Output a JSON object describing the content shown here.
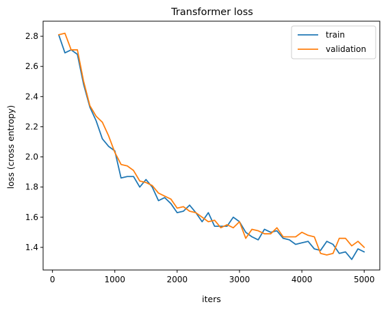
{
  "chart_data": {
    "type": "line",
    "title": "Transformer loss",
    "xlabel": "iters",
    "ylabel": "loss (cross entropy)",
    "xlim": [
      -150,
      5250
    ],
    "ylim": [
      1.25,
      2.9
    ],
    "xticks": [
      0,
      1000,
      2000,
      3000,
      4000,
      5000
    ],
    "yticks": [
      1.4,
      1.6,
      1.8,
      2.0,
      2.2,
      2.4,
      2.6,
      2.8
    ],
    "xtick_labels": [
      "0",
      "1000",
      "2000",
      "3000",
      "4000",
      "5000"
    ],
    "ytick_labels": [
      "1.4",
      "1.6",
      "1.8",
      "2.0",
      "2.2",
      "2.4",
      "2.6",
      "2.8"
    ],
    "legend": "top-right",
    "grid": false,
    "x": [
      100,
      200,
      300,
      400,
      500,
      600,
      700,
      800,
      900,
      1000,
      1100,
      1200,
      1300,
      1400,
      1500,
      1600,
      1700,
      1800,
      1900,
      2000,
      2100,
      2200,
      2300,
      2400,
      2500,
      2600,
      2700,
      2800,
      2900,
      3000,
      3100,
      3200,
      3300,
      3400,
      3500,
      3600,
      3700,
      3800,
      3900,
      4000,
      4100,
      4200,
      4300,
      4400,
      4500,
      4600,
      4700,
      4800,
      4900,
      5000
    ],
    "series": [
      {
        "name": "train",
        "color": "#1f77b4",
        "values": [
          2.81,
          2.69,
          2.71,
          2.68,
          2.48,
          2.33,
          2.24,
          2.12,
          2.07,
          2.04,
          1.86,
          1.87,
          1.87,
          1.8,
          1.85,
          1.8,
          1.71,
          1.73,
          1.69,
          1.63,
          1.64,
          1.68,
          1.63,
          1.57,
          1.63,
          1.54,
          1.54,
          1.54,
          1.6,
          1.57,
          1.5,
          1.47,
          1.45,
          1.52,
          1.5,
          1.51,
          1.46,
          1.45,
          1.42,
          1.43,
          1.44,
          1.39,
          1.38,
          1.44,
          1.42,
          1.36,
          1.37,
          1.32,
          1.39,
          1.37
        ]
      },
      {
        "name": "validation",
        "color": "#ff7f0e",
        "values": [
          2.81,
          2.82,
          2.71,
          2.71,
          2.5,
          2.34,
          2.27,
          2.23,
          2.14,
          2.03,
          1.95,
          1.94,
          1.91,
          1.84,
          1.83,
          1.81,
          1.76,
          1.74,
          1.72,
          1.66,
          1.67,
          1.64,
          1.63,
          1.6,
          1.57,
          1.58,
          1.53,
          1.55,
          1.53,
          1.57,
          1.46,
          1.52,
          1.51,
          1.49,
          1.49,
          1.53,
          1.47,
          1.47,
          1.47,
          1.5,
          1.48,
          1.47,
          1.36,
          1.35,
          1.36,
          1.46,
          1.46,
          1.41,
          1.44,
          1.4
        ]
      }
    ]
  }
}
